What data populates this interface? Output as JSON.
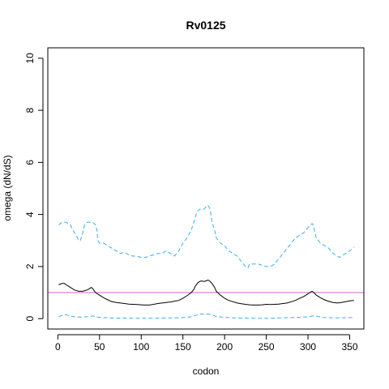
{
  "chart_data": {
    "type": "line",
    "title": "Rv0125",
    "xlabel": "codon",
    "ylabel": "omega (dN/dS)",
    "xlim": [
      -12,
      367
    ],
    "ylim": [
      -0.4,
      10.4
    ],
    "x_ticks": [
      0,
      50,
      100,
      150,
      200,
      250,
      300,
      350
    ],
    "y_ticks": [
      0,
      2,
      4,
      6,
      8,
      10
    ],
    "reference_line": {
      "y": 1,
      "color": "#cc66cc"
    },
    "series": [
      {
        "role": "upper",
        "color": "#3daee9",
        "dash": true,
        "x": [
          1,
          5,
          10,
          15,
          18,
          22,
          25,
          27,
          30,
          32,
          35,
          38,
          42,
          45,
          47,
          48,
          50,
          55,
          60,
          65,
          70,
          75,
          80,
          85,
          90,
          95,
          100,
          105,
          110,
          115,
          120,
          125,
          130,
          135,
          140,
          145,
          150,
          155,
          160,
          163,
          165,
          167,
          170,
          173,
          175,
          178,
          180,
          182,
          183,
          185,
          188,
          190,
          195,
          200,
          205,
          210,
          215,
          220,
          225,
          228,
          230,
          235,
          240,
          245,
          250,
          255,
          260,
          265,
          270,
          275,
          280,
          285,
          290,
          295,
          300,
          303,
          305,
          307,
          308,
          310,
          315,
          320,
          325,
          330,
          335,
          338,
          340,
          345,
          350,
          355
        ],
        "y": [
          3.6,
          3.7,
          3.7,
          3.6,
          3.4,
          3.2,
          3.0,
          3.0,
          3.3,
          3.6,
          3.7,
          3.7,
          3.7,
          3.6,
          3.4,
          3.0,
          2.9,
          2.9,
          2.8,
          2.7,
          2.6,
          2.5,
          2.55,
          2.45,
          2.4,
          2.4,
          2.35,
          2.35,
          2.4,
          2.45,
          2.5,
          2.5,
          2.6,
          2.5,
          2.4,
          2.6,
          2.9,
          3.1,
          3.4,
          3.7,
          3.9,
          4.1,
          4.2,
          4.2,
          4.2,
          4.3,
          4.35,
          4.25,
          4.1,
          3.7,
          3.4,
          3.1,
          2.9,
          2.8,
          2.6,
          2.5,
          2.4,
          2.2,
          2.0,
          1.95,
          2.1,
          2.1,
          2.1,
          2.05,
          2.0,
          2.0,
          2.1,
          2.3,
          2.5,
          2.7,
          2.9,
          3.1,
          3.2,
          3.3,
          3.5,
          3.6,
          3.65,
          3.55,
          3.3,
          3.1,
          2.9,
          2.8,
          2.7,
          2.5,
          2.4,
          2.35,
          2.4,
          2.5,
          2.6,
          2.75
        ]
      },
      {
        "role": "estimate",
        "color": "#000000",
        "dash": false,
        "x": [
          1,
          5,
          8,
          10,
          15,
          20,
          25,
          30,
          35,
          38,
          40,
          42,
          45,
          50,
          55,
          60,
          65,
          70,
          75,
          80,
          85,
          90,
          95,
          100,
          105,
          110,
          115,
          120,
          125,
          130,
          135,
          140,
          145,
          150,
          155,
          160,
          163,
          165,
          168,
          170,
          172,
          175,
          178,
          180,
          182,
          185,
          188,
          190,
          195,
          200,
          205,
          210,
          215,
          220,
          225,
          230,
          235,
          240,
          245,
          250,
          255,
          260,
          265,
          270,
          275,
          280,
          285,
          290,
          295,
          300,
          303,
          305,
          307,
          310,
          315,
          320,
          325,
          330,
          335,
          340,
          345,
          350,
          355
        ],
        "y": [
          1.3,
          1.35,
          1.35,
          1.3,
          1.2,
          1.1,
          1.05,
          1.05,
          1.1,
          1.15,
          1.2,
          1.15,
          1.0,
          0.9,
          0.8,
          0.72,
          0.65,
          0.62,
          0.6,
          0.58,
          0.56,
          0.55,
          0.54,
          0.53,
          0.52,
          0.52,
          0.55,
          0.58,
          0.6,
          0.62,
          0.64,
          0.67,
          0.7,
          0.78,
          0.88,
          1.0,
          1.12,
          1.25,
          1.38,
          1.42,
          1.45,
          1.43,
          1.45,
          1.48,
          1.45,
          1.35,
          1.2,
          1.05,
          0.9,
          0.78,
          0.7,
          0.65,
          0.6,
          0.57,
          0.55,
          0.53,
          0.52,
          0.52,
          0.53,
          0.55,
          0.54,
          0.55,
          0.56,
          0.58,
          0.6,
          0.65,
          0.7,
          0.78,
          0.85,
          0.95,
          1.02,
          1.05,
          1.0,
          0.9,
          0.8,
          0.72,
          0.66,
          0.62,
          0.6,
          0.62,
          0.65,
          0.68,
          0.7
        ]
      },
      {
        "role": "lower",
        "color": "#3daee9",
        "dash": true,
        "x": [
          1,
          5,
          10,
          15,
          20,
          25,
          30,
          35,
          40,
          42,
          45,
          50,
          60,
          70,
          80,
          90,
          100,
          110,
          120,
          130,
          140,
          150,
          160,
          165,
          170,
          175,
          180,
          185,
          190,
          200,
          210,
          220,
          230,
          240,
          250,
          260,
          270,
          280,
          290,
          300,
          305,
          308,
          312,
          320,
          330,
          340,
          350,
          355
        ],
        "y": [
          0.08,
          0.12,
          0.15,
          0.1,
          0.07,
          0.06,
          0.06,
          0.07,
          0.09,
          0.1,
          0.07,
          0.05,
          0.03,
          0.02,
          0.02,
          0.01,
          0.01,
          0.01,
          0.02,
          0.02,
          0.03,
          0.04,
          0.07,
          0.12,
          0.18,
          0.17,
          0.18,
          0.15,
          0.08,
          0.05,
          0.03,
          0.02,
          0.02,
          0.01,
          0.01,
          0.02,
          0.03,
          0.04,
          0.05,
          0.07,
          0.1,
          0.11,
          0.08,
          0.04,
          0.03,
          0.03,
          0.04,
          0.04
        ]
      }
    ]
  }
}
